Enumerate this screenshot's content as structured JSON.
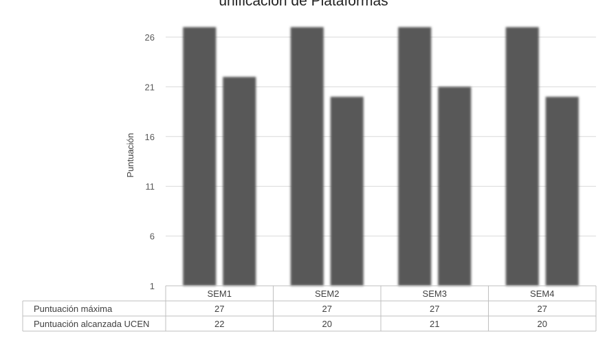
{
  "chart_data": {
    "type": "bar",
    "title": "unificación de Plataformas",
    "ylabel": "Puntuación",
    "xlabel": "",
    "categories": [
      "SEM1",
      "SEM2",
      "SEM3",
      "SEM4"
    ],
    "series": [
      {
        "name": "Puntuación máxima",
        "values": [
          27,
          27,
          27,
          27
        ]
      },
      {
        "name": "Puntuación alcanzada UCEN",
        "values": [
          22,
          20,
          21,
          20
        ]
      }
    ],
    "ylim": [
      1,
      28
    ],
    "yticks": [
      1,
      6,
      11,
      16,
      21,
      26
    ],
    "grid": true,
    "legend": "data-table",
    "colors": {
      "bars": "#595959",
      "grid": "#d9d9d9",
      "table_border": "#bfbfbf"
    }
  }
}
